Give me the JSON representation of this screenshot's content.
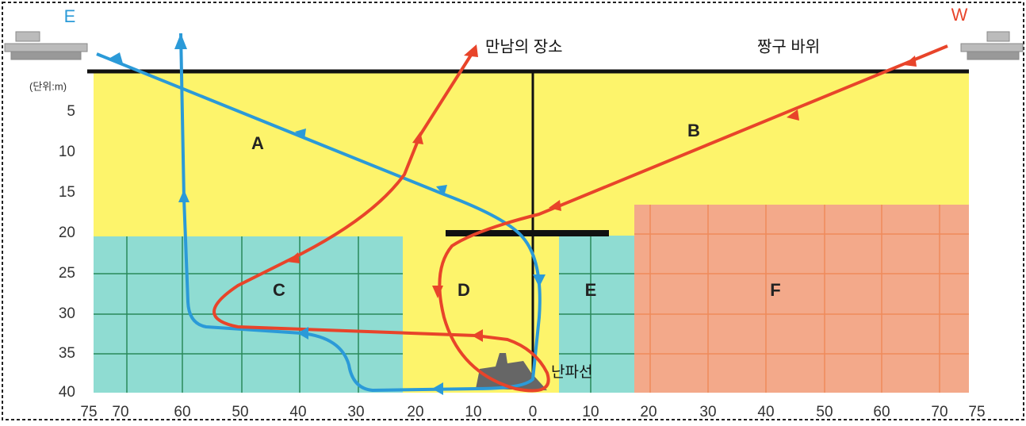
{
  "directions": {
    "east": "E",
    "west": "W"
  },
  "places": {
    "meeting": "만남의 장소",
    "rock": "짱구 바위",
    "wreck": "난파선"
  },
  "unit": "(단위:m)",
  "depth_labels": [
    5,
    10,
    15,
    20,
    25,
    30,
    35,
    40
  ],
  "distance_labels": [
    75,
    70,
    60,
    50,
    40,
    30,
    20,
    10,
    0,
    10,
    20,
    30,
    40,
    50,
    60,
    70,
    75
  ],
  "regions": [
    "A",
    "B",
    "C",
    "D",
    "E",
    "F"
  ]
}
